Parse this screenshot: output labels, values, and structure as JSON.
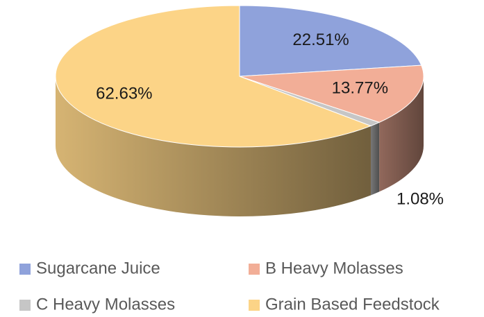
{
  "chart_data": {
    "type": "pie",
    "categories": [
      "Sugarcane Juice",
      "B Heavy Molasses",
      "C Heavy Molasses",
      "Grain Based Feedstock"
    ],
    "values": [
      22.51,
      13.77,
      1.08,
      62.63
    ],
    "value_labels": [
      "22.51%",
      "13.77%",
      "1.08%",
      "62.63%"
    ],
    "colors": [
      "#8fa2db",
      "#f2ae97",
      "#c6c6c6",
      "#fcd487"
    ],
    "legend": "bottom"
  }
}
